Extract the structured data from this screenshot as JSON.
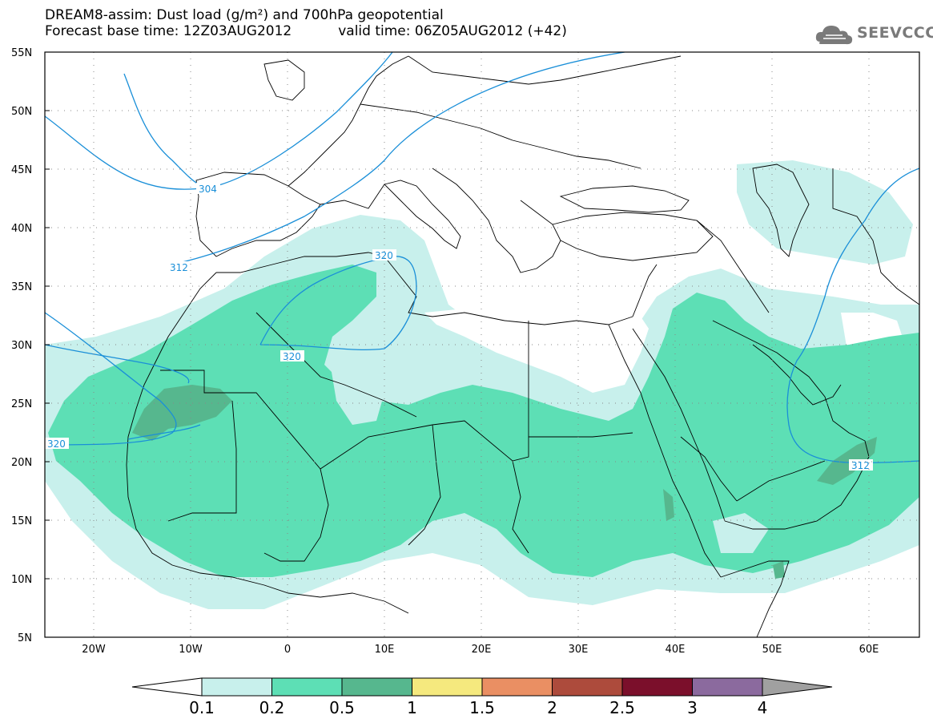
{
  "header": {
    "title": "DREAM8-assim: Dust load (g/m²) and 700hPa geopotential",
    "base_time": "Forecast base time: 12Z03AUG2012",
    "valid_time": "valid time: 06Z05AUG2012 (+42)"
  },
  "logo": {
    "text": "SEEVCCC",
    "icon": "cloud-icon"
  },
  "map": {
    "lat_labels": [
      "55N",
      "50N",
      "45N",
      "40N",
      "35N",
      "30N",
      "25N",
      "20N",
      "15N",
      "10N",
      "5N"
    ],
    "lon_labels": [
      "20W",
      "10W",
      "0",
      "10E",
      "20E",
      "30E",
      "40E",
      "50E",
      "60E"
    ],
    "lat_range": [
      5,
      55
    ],
    "lon_range": [
      -25,
      65
    ],
    "contour_labels": [
      "304",
      "312",
      "320",
      "320",
      "320",
      "312"
    ],
    "colors": {
      "dust_0_1": "#c8f0ec",
      "dust_0_2": "#5ddfb5",
      "dust_0_5": "#56b78e",
      "contour": "#1a8fd8"
    }
  },
  "colorbar": {
    "ticks": [
      "0.1",
      "0.2",
      "0.5",
      "1",
      "1.5",
      "2",
      "2.5",
      "3",
      "4"
    ],
    "colors": [
      "#c8f0ec",
      "#5ddfb5",
      "#56b78e",
      "#f5e97e",
      "#ea8f63",
      "#ad4b3c",
      "#7b0f2b",
      "#8b6a9e",
      "#a0a0a0"
    ]
  }
}
